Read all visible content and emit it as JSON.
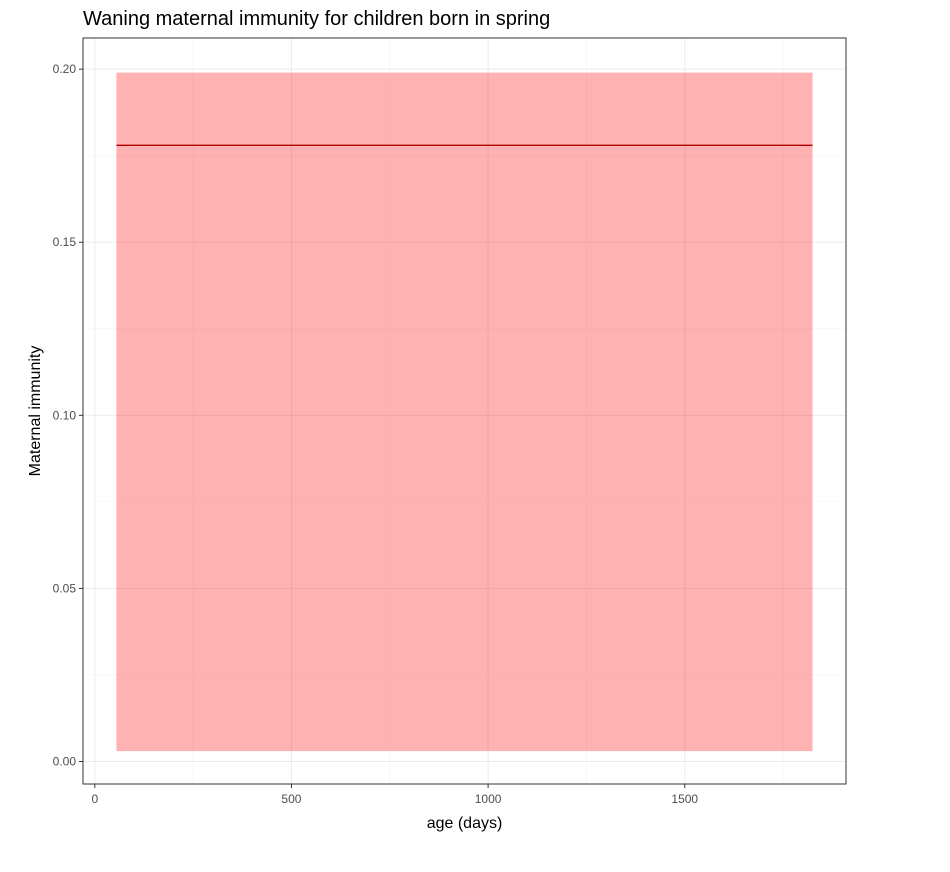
{
  "chart_data": {
    "type": "line",
    "title": "Waning maternal immunity for children born in spring",
    "xlabel": "age (days)",
    "ylabel": "Maternal immunity",
    "xlim": [
      -30,
      1910
    ],
    "ylim": [
      -0.0065,
      0.209
    ],
    "x_ticks": [
      0,
      500,
      1000,
      1500
    ],
    "x_tick_labels": [
      "0",
      "500",
      "1000",
      "1500"
    ],
    "y_ticks": [
      0,
      0.05,
      0.1,
      0.15,
      0.2
    ],
    "y_tick_labels": [
      "0.00",
      "0.05",
      "0.10",
      "0.15",
      "0.20"
    ],
    "grid": true,
    "series": [
      {
        "x": [
          55,
          1825
        ],
        "y": [
          0.178,
          0.178
        ],
        "lower": [
          0.003,
          0.003
        ],
        "upper": [
          0.199,
          0.199
        ]
      }
    ],
    "line_color": "#b00000",
    "ribbon_color": "#ff0000",
    "ribbon_opacity": 0.3
  }
}
